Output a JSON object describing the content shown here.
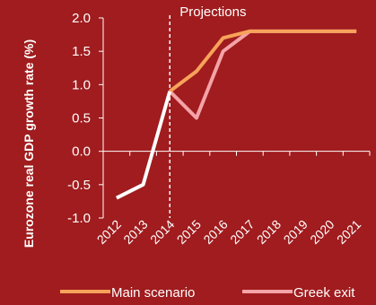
{
  "chart_data": {
    "type": "line",
    "title": "",
    "xlabel": "",
    "ylabel": "Eurozone real GDP growth rate (%)",
    "ylim": [
      -1.0,
      2.0
    ],
    "yticks": [
      "2.0",
      "1.5",
      "1.0",
      "0.5",
      "0.0",
      "-0.5",
      "-1.0"
    ],
    "ytick_values": [
      2.0,
      1.5,
      1.0,
      0.5,
      0.0,
      -0.5,
      -1.0
    ],
    "categories": [
      "2012",
      "2013",
      "2014",
      "2015",
      "2016",
      "2017",
      "2018",
      "2019",
      "2020",
      "2021"
    ],
    "projection_label": "Projections",
    "projection_start": "2014",
    "history": {
      "color": "#ffffff",
      "x": [
        "2012",
        "2013",
        "2014"
      ],
      "values": [
        -0.7,
        -0.5,
        0.9
      ]
    },
    "series": [
      {
        "name": "Main scenario",
        "color": "#f7a25a",
        "x": [
          "2014",
          "2015",
          "2016",
          "2017",
          "2018",
          "2019",
          "2020",
          "2021"
        ],
        "values": [
          0.9,
          1.2,
          1.7,
          1.8,
          1.8,
          1.8,
          1.8,
          1.8
        ]
      },
      {
        "name": "Greek exit",
        "color": "#f4a3a8",
        "x": [
          "2014",
          "2015",
          "2016",
          "2017",
          "2018",
          "2019",
          "2020",
          "2021"
        ],
        "values": [
          0.9,
          0.5,
          1.5,
          1.8,
          1.8,
          1.8,
          1.8,
          1.8
        ]
      }
    ],
    "grid": false,
    "legend_position": "bottom"
  },
  "colors": {
    "background": "#a01c1e",
    "axis": "#ffffff",
    "text": "#ffffff"
  }
}
